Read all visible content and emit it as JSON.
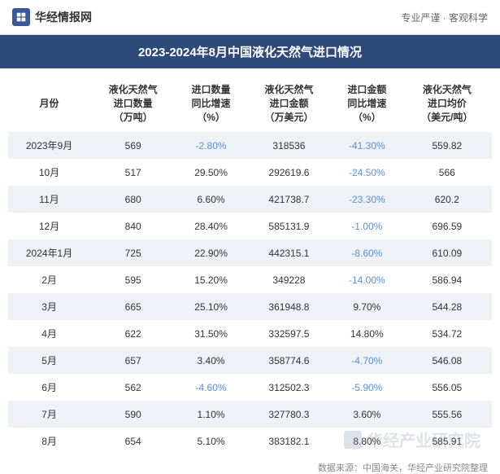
{
  "header": {
    "site_name": "华经情报网",
    "tagline": "专业严谨 · 客观科学"
  },
  "title": "2023-2024年8月中国液化天然气进口情况",
  "table": {
    "columns": [
      "月份",
      "液化天然气\n进口数量\n（万吨）",
      "进口数量\n同比增速\n（%）",
      "液化天然气\n进口金额\n（万美元）",
      "进口金额\n同比增速\n（%）",
      "液化天然气\n进口均价\n（美元/吨）"
    ],
    "rows": [
      {
        "month": "2023年9月",
        "qty": "569",
        "qty_yoy": "-2.80%",
        "qty_neg": true,
        "amount": "318536",
        "amt_yoy": "-41.30%",
        "amt_neg": true,
        "price": "559.82",
        "shaded": true
      },
      {
        "month": "10月",
        "qty": "517",
        "qty_yoy": "29.50%",
        "qty_neg": false,
        "amount": "292619.6",
        "amt_yoy": "-24.50%",
        "amt_neg": true,
        "price": "566",
        "shaded": false
      },
      {
        "month": "11月",
        "qty": "680",
        "qty_yoy": "6.60%",
        "qty_neg": false,
        "amount": "421738.7",
        "amt_yoy": "-23.30%",
        "amt_neg": true,
        "price": "620.2",
        "shaded": true
      },
      {
        "month": "12月",
        "qty": "840",
        "qty_yoy": "28.40%",
        "qty_neg": false,
        "amount": "585131.9",
        "amt_yoy": "-1.00%",
        "amt_neg": true,
        "price": "696.59",
        "shaded": false
      },
      {
        "month": "2024年1月",
        "qty": "725",
        "qty_yoy": "22.90%",
        "qty_neg": false,
        "amount": "442315.1",
        "amt_yoy": "-8.60%",
        "amt_neg": true,
        "price": "610.09",
        "shaded": true
      },
      {
        "month": "2月",
        "qty": "595",
        "qty_yoy": "15.20%",
        "qty_neg": false,
        "amount": "349228",
        "amt_yoy": "-14.00%",
        "amt_neg": true,
        "price": "586.94",
        "shaded": false
      },
      {
        "month": "3月",
        "qty": "665",
        "qty_yoy": "25.10%",
        "qty_neg": false,
        "amount": "361948.8",
        "amt_yoy": "9.70%",
        "amt_neg": false,
        "price": "544.28",
        "shaded": true
      },
      {
        "month": "4月",
        "qty": "622",
        "qty_yoy": "31.50%",
        "qty_neg": false,
        "amount": "332597.5",
        "amt_yoy": "14.80%",
        "amt_neg": false,
        "price": "534.72",
        "shaded": false
      },
      {
        "month": "5月",
        "qty": "657",
        "qty_yoy": "3.40%",
        "qty_neg": false,
        "amount": "358774.6",
        "amt_yoy": "-4.70%",
        "amt_neg": true,
        "price": "546.08",
        "shaded": true
      },
      {
        "month": "6月",
        "qty": "562",
        "qty_yoy": "-4.60%",
        "qty_neg": true,
        "amount": "312502.3",
        "amt_yoy": "-5.90%",
        "amt_neg": true,
        "price": "556.05",
        "shaded": false
      },
      {
        "month": "7月",
        "qty": "590",
        "qty_yoy": "1.10%",
        "qty_neg": false,
        "amount": "327780.3",
        "amt_yoy": "3.60%",
        "amt_neg": false,
        "price": "555.56",
        "shaded": true
      },
      {
        "month": "8月",
        "qty": "654",
        "qty_yoy": "5.10%",
        "qty_neg": false,
        "amount": "383182.1",
        "amt_yoy": "8.80%",
        "amt_neg": false,
        "price": "585.91",
        "shaded": false
      }
    ]
  },
  "data_source": "数据来源：中国海关，华经产业研究院整理",
  "watermark": "华经产业研究院",
  "styling": {
    "title_bg": "#2d4a7a",
    "title_fg": "#ffffff",
    "shaded_row_bg": "#eef1f6",
    "negative_color": "#5b8fd6",
    "text_color": "#333333",
    "font_size_title": 15,
    "font_size_body": 12
  }
}
